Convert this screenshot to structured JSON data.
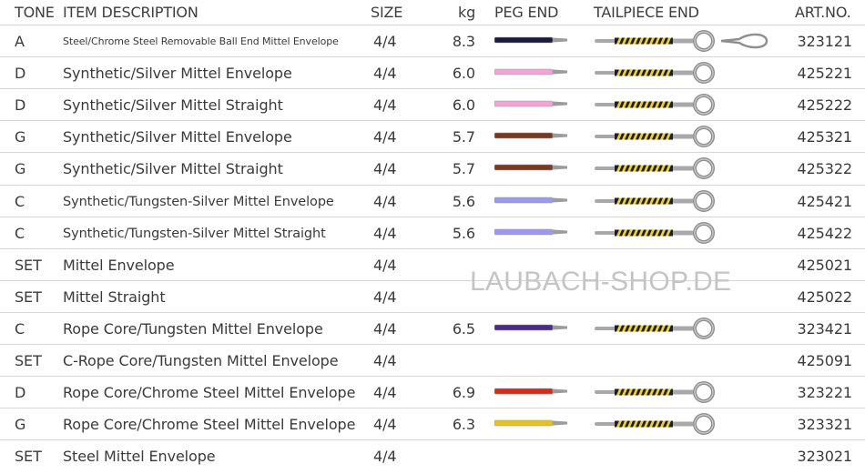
{
  "header": {
    "tone": "TONE",
    "item_description": "ITEM DESCRIPTION",
    "size": "SIZE",
    "kg": "kg",
    "peg_end": "PEG END",
    "tailpiece_end": "TAILPIECE END",
    "art_no": "ART.NO."
  },
  "watermark": "LAUBACH-SHOP.DE",
  "rows": [
    {
      "tone": "A",
      "description": "Steel/Chrome Steel Removable Ball End Mittel Envelope",
      "size": "4/4",
      "kg": "8.3",
      "peg_color": "#1c1a3a",
      "tailpiece": "ring-and-loop",
      "art_no": "323121"
    },
    {
      "tone": "D",
      "description": "Synthetic/Silver Mittel Envelope",
      "size": "4/4",
      "kg": "6.0",
      "peg_color": "#f3a3d6",
      "tailpiece": "ring",
      "art_no": "425221"
    },
    {
      "tone": "D",
      "description": "Synthetic/Silver Mittel Straight",
      "size": "4/4",
      "kg": "6.0",
      "peg_color": "#f3a3d6",
      "tailpiece": "ring",
      "art_no": "425222"
    },
    {
      "tone": "G",
      "description": "Synthetic/Silver Mittel Envelope",
      "size": "4/4",
      "kg": "5.7",
      "peg_color": "#7a3a22",
      "tailpiece": "ring",
      "art_no": "425321"
    },
    {
      "tone": "G",
      "description": "Synthetic/Silver Mittel Straight",
      "size": "4/4",
      "kg": "5.7",
      "peg_color": "#7a3a22",
      "tailpiece": "ring",
      "art_no": "425322"
    },
    {
      "tone": "C",
      "description": "Synthetic/Tungsten-Silver Mittel Envelope",
      "size": "4/4",
      "kg": "5.6",
      "peg_color": "#9b98f0",
      "tailpiece": "ring",
      "art_no": "425421"
    },
    {
      "tone": "C",
      "description": "Synthetic/Tungsten-Silver Mittel Straight",
      "size": "4/4",
      "kg": "5.6",
      "peg_color": "#9b98f0",
      "tailpiece": "ring",
      "art_no": "425422"
    },
    {
      "tone": "SET",
      "description": "Mittel Envelope",
      "size": "4/4",
      "kg": "",
      "peg_color": "",
      "tailpiece": "",
      "art_no": "425021"
    },
    {
      "tone": "SET",
      "description": "Mittel Straight",
      "size": "4/4",
      "kg": "",
      "peg_color": "",
      "tailpiece": "",
      "art_no": "425022"
    },
    {
      "tone": "C",
      "description": "Rope Core/Tungsten Mittel Envelope",
      "size": "4/4",
      "kg": "6.5",
      "peg_color": "#4a2a8a",
      "tailpiece": "ring",
      "art_no": "323421"
    },
    {
      "tone": "SET",
      "description": "C-Rope Core/Tungsten Mittel Envelope",
      "size": "4/4",
      "kg": "",
      "peg_color": "",
      "tailpiece": "",
      "art_no": "425091"
    },
    {
      "tone": "D",
      "description": "Rope Core/Chrome Steel Mittel Envelope",
      "size": "4/4",
      "kg": "6.9",
      "peg_color": "#d8291b",
      "tailpiece": "ring",
      "art_no": "323221"
    },
    {
      "tone": "G",
      "description": "Rope Core/Chrome Steel Mittel Envelope",
      "size": "4/4",
      "kg": "6.3",
      "peg_color": "#e6c21a",
      "tailpiece": "ring",
      "art_no": "323321"
    },
    {
      "tone": "SET",
      "description": "Steel Mittel Envelope",
      "size": "4/4",
      "kg": "",
      "peg_color": "",
      "tailpiece": "",
      "art_no": "323021"
    }
  ]
}
